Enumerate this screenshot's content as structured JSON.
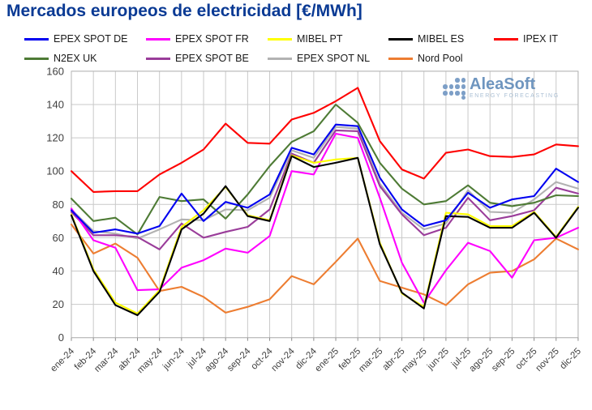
{
  "title": "Mercados europeos de electricidad [€/MWh]",
  "logo": {
    "brand": "AleaSoft",
    "tagline": "ENERGY FORECASTING"
  },
  "chart_data": {
    "type": "line",
    "title": "Mercados europeos de electricidad [€/MWh]",
    "xlabel": "",
    "ylabel": "",
    "ylim": [
      0,
      160
    ],
    "y_ticks": [
      0,
      20,
      40,
      60,
      80,
      100,
      120,
      140,
      160
    ],
    "grid": true,
    "legend_position": "top",
    "categories": [
      "ene-24",
      "feb-24",
      "mar-24",
      "abr-24",
      "may-24",
      "jun-24",
      "jul-24",
      "ago-24",
      "sep-24",
      "oct-24",
      "nov-24",
      "dic-24",
      "ene-25",
      "feb-25",
      "mar-25",
      "abr-25",
      "may-25",
      "jun-25",
      "jul-25",
      "ago-25",
      "sep-25",
      "oct-25",
      "nov-25",
      "dic-25"
    ],
    "series": [
      {
        "name": "EPEX SPOT DE",
        "color": "#0000f0",
        "values": [
          76.5,
          63,
          65,
          62.5,
          67,
          86.5,
          70,
          81.5,
          78,
          86,
          114,
          110,
          128,
          127,
          96,
          77,
          67,
          70.5,
          87,
          78,
          83,
          85,
          101.5,
          93.5
        ]
      },
      {
        "name": "EPEX SPOT FR",
        "color": "#ff00ff",
        "values": [
          77.5,
          58.5,
          54,
          28.5,
          29,
          42,
          46.5,
          53.5,
          51,
          61,
          100,
          98,
          122.5,
          120,
          84,
          45,
          21,
          40.5,
          57,
          52,
          36,
          58.5,
          60,
          66
        ]
      },
      {
        "name": "MIBEL PT",
        "color": "#ffff00",
        "values": [
          74,
          41,
          21,
          14.5,
          28.5,
          66.5,
          76.5,
          90.5,
          73.5,
          70.5,
          109.5,
          105,
          107,
          108,
          57,
          26.5,
          18.5,
          75,
          74,
          67,
          67,
          75.5,
          60.5,
          78.5
        ]
      },
      {
        "name": "MIBEL ES",
        "color": "#000000",
        "values": [
          73.5,
          40,
          19.5,
          13.5,
          27.5,
          65,
          74.5,
          91,
          73,
          70,
          109,
          102.5,
          105,
          108,
          56,
          27,
          17.5,
          73,
          72.5,
          66,
          66,
          75,
          60,
          78
        ]
      },
      {
        "name": "IPEX IT",
        "color": "#fe0000",
        "values": [
          100,
          87.5,
          88,
          88,
          98,
          105,
          113,
          128.5,
          117,
          116.5,
          131,
          135,
          142,
          150,
          118,
          101,
          95.5,
          111,
          113,
          109,
          108.5,
          110,
          116,
          115
        ]
      },
      {
        "name": "N2EX UK",
        "color": "#4e7b35",
        "values": [
          83.5,
          70,
          72,
          62,
          84.5,
          82,
          83,
          71.5,
          86,
          103,
          117.5,
          124,
          140,
          129,
          105,
          89.5,
          80,
          82,
          91.5,
          81,
          79,
          81,
          85.5,
          85
        ]
      },
      {
        "name": "EPEX SPOT BE",
        "color": "#9a3d9a",
        "values": [
          75.5,
          61.5,
          61.5,
          60.5,
          53,
          68.5,
          60,
          63.5,
          66.5,
          77,
          110.5,
          105,
          124.5,
          124,
          91,
          74,
          61.5,
          66,
          84,
          70.5,
          73,
          76.5,
          90,
          86.5
        ]
      },
      {
        "name": "EPEX SPOT NL",
        "color": "#b2b2b2",
        "values": [
          77,
          64,
          62.5,
          59.5,
          65,
          71,
          70.5,
          77,
          76.5,
          84,
          112.5,
          108,
          126.5,
          125.5,
          92.5,
          75,
          65,
          68.5,
          88.5,
          75.5,
          75,
          83,
          93.5,
          89.5
        ]
      },
      {
        "name": "Nord Pool",
        "color": "#ed7d31",
        "values": [
          68,
          50.5,
          56.5,
          48,
          28,
          30.5,
          24.5,
          15,
          18.5,
          23,
          37,
          32,
          45.5,
          59.5,
          34,
          30,
          26,
          19.5,
          32,
          39,
          40,
          47,
          59.5,
          53
        ]
      }
    ],
    "legend_rows": [
      [
        0,
        1,
        2,
        3,
        4
      ],
      [
        5,
        6,
        7,
        8
      ]
    ],
    "draw_order": [
      7,
      6,
      5,
      8,
      1,
      2,
      3,
      0,
      4
    ]
  },
  "colors": {
    "title": "#0a3a94",
    "grid": "#c9c9c9",
    "axis_border": "#b5b5b5",
    "tick_label": "#3f3f3f",
    "logo_blue": "#6e95bf"
  }
}
